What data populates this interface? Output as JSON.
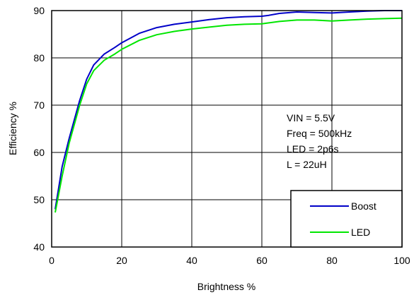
{
  "chart_data": {
    "type": "line",
    "xlabel": "Brightness %",
    "ylabel": "Efficiency %",
    "xlim": [
      0,
      100
    ],
    "ylim": [
      40,
      90
    ],
    "x_ticks": [
      0,
      20,
      40,
      60,
      80,
      100
    ],
    "y_ticks": [
      40,
      50,
      60,
      70,
      80,
      90
    ],
    "grid": true,
    "annotations": [
      "VIN = 5.5V",
      "Freq = 500kHz",
      "LED = 2p6s",
      "L = 22uH"
    ],
    "legend": {
      "placement": "bottom-right"
    },
    "series": [
      {
        "name": "Boost",
        "color": "#0000c8",
        "x": [
          1,
          3,
          5,
          8,
          10,
          12,
          15,
          18,
          20,
          25,
          30,
          35,
          40,
          45,
          50,
          55,
          60,
          62,
          65,
          70,
          75,
          80,
          85,
          90,
          95,
          100
        ],
        "y": [
          48,
          57,
          63,
          71,
          75.5,
          78.5,
          80.8,
          82.2,
          83.2,
          85.2,
          86.4,
          87.1,
          87.6,
          88.1,
          88.5,
          88.7,
          88.8,
          89.0,
          89.4,
          89.7,
          89.6,
          89.5,
          89.7,
          89.9,
          90.0,
          90.0
        ]
      },
      {
        "name": "LED",
        "color": "#00e600",
        "x": [
          1,
          3,
          5,
          8,
          10,
          12,
          15,
          18,
          20,
          25,
          30,
          35,
          40,
          45,
          50,
          55,
          60,
          62,
          65,
          70,
          75,
          80,
          85,
          90,
          95,
          100
        ],
        "y": [
          47.3,
          55,
          62,
          70,
          74.5,
          77.3,
          79.5,
          80.8,
          81.8,
          83.7,
          84.9,
          85.6,
          86.1,
          86.5,
          86.9,
          87.1,
          87.2,
          87.4,
          87.7,
          88.0,
          88.0,
          87.8,
          88.0,
          88.2,
          88.3,
          88.4
        ]
      }
    ]
  }
}
